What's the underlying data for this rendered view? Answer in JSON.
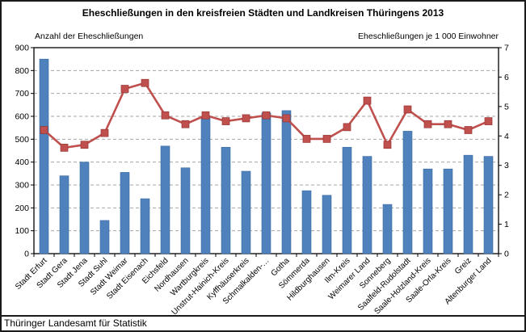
{
  "title": "Eheschließungen in den kreisfreien Städten und Landkreisen Thüringens 2013",
  "left_axis_title": "Anzahl der Eheschließungen",
  "right_axis_title": "Eheschließungen je 1 000 Einwohner",
  "footer": "Thüringer Landesamt für Statistik",
  "colors": {
    "bar": "#4f81bd",
    "bar_edge": "#3a6aa0",
    "line": "#c0504d",
    "marker_edge": "#963634",
    "gridline": "#a6a6a6",
    "axis": "#000000",
    "background": "#ffffff",
    "text": "#000000"
  },
  "chart_data": {
    "type": "bar",
    "combo": "bar+line",
    "title": "Eheschließungen in den kreisfreien Städten und Landkreisen Thüringens 2013",
    "categories": [
      "Stadt Erfurt",
      "Stadt Gera",
      "Stadt Jena",
      "Stadt Suhl",
      "Stadt Weimar",
      "Stadt Eisenach",
      "Eichsfeld",
      "Nordhausen",
      "Wartburgkreis",
      "Unstrut-Hainich-Kreis",
      "Kyffhäuserkreis",
      "Schmalkalden-…",
      "Gotha",
      "Sömmerda",
      "Hildburghausen",
      "Ilm-Kreis",
      "Weimarer Land",
      "Sonneberg",
      "Saalfeld-Rudolstadt",
      "Saale-Holzland-Kreis",
      "Saale-Orla-Kreis",
      "Greiz",
      "Altenburger Land"
    ],
    "series": [
      {
        "name": "Anzahl der Eheschließungen",
        "type": "bar",
        "axis": "left",
        "values": [
          850,
          340,
          400,
          145,
          355,
          240,
          470,
          375,
          600,
          465,
          360,
          615,
          625,
          275,
          255,
          465,
          425,
          215,
          535,
          370,
          370,
          430,
          425
        ]
      },
      {
        "name": "Eheschließungen je 1 000 Einwohner",
        "type": "line",
        "axis": "right",
        "values": [
          4.2,
          3.6,
          3.7,
          4.1,
          5.6,
          5.8,
          4.7,
          4.4,
          4.7,
          4.5,
          4.6,
          4.7,
          4.6,
          3.9,
          3.9,
          4.3,
          5.2,
          3.7,
          4.9,
          4.4,
          4.4,
          4.2,
          4.5
        ]
      }
    ],
    "left_axis": {
      "min": 0,
      "max": 900,
      "step": 100,
      "ticks": [
        0,
        100,
        200,
        300,
        400,
        500,
        600,
        700,
        800,
        900
      ]
    },
    "right_axis": {
      "min": 0,
      "max": 7,
      "step": 1,
      "ticks": [
        0,
        1,
        2,
        3,
        4,
        5,
        6,
        7
      ]
    },
    "grid": true,
    "gridline_style": "dashed",
    "x_label_rotation": -45,
    "legend": "none"
  }
}
